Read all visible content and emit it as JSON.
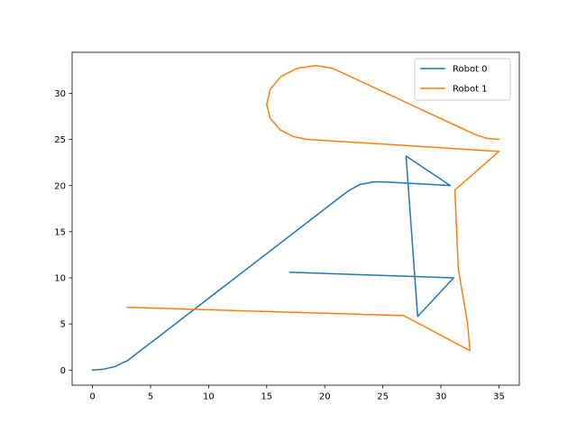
{
  "chart_data": {
    "type": "line",
    "title": "",
    "xlabel": "",
    "ylabel": "",
    "xlim": [
      -1.75,
      36.75
    ],
    "ylim": [
      -1.64,
      34.44
    ],
    "x_ticks": [
      0,
      5,
      10,
      15,
      20,
      25,
      30,
      35
    ],
    "y_ticks": [
      0,
      5,
      10,
      15,
      20,
      25,
      30
    ],
    "grid": false,
    "legend_position": "top-right",
    "series": [
      {
        "name": "Robot 0",
        "color": "#1f77b4",
        "points": [
          [
            0,
            0
          ],
          [
            1,
            0.1
          ],
          [
            2,
            0.4
          ],
          [
            2.6,
            0.8
          ],
          [
            3,
            1
          ],
          [
            22,
            19.4
          ],
          [
            23,
            20.1
          ],
          [
            24.2,
            20.4
          ],
          [
            25,
            20.4
          ],
          [
            26.5,
            20.3
          ],
          [
            30.8,
            20
          ],
          [
            27,
            23.2
          ],
          [
            28,
            5.8
          ],
          [
            31.1,
            10
          ],
          [
            17,
            10.6
          ]
        ]
      },
      {
        "name": "Robot 1",
        "color": "#ff7f0e",
        "points": [
          [
            3,
            6.8
          ],
          [
            26.8,
            5.9
          ],
          [
            32.5,
            2.1
          ],
          [
            32.3,
            5
          ],
          [
            31.5,
            11
          ],
          [
            31.2,
            19.5
          ],
          [
            35,
            23.7
          ],
          [
            18.5,
            25
          ],
          [
            17.3,
            25.3
          ],
          [
            16.2,
            26
          ],
          [
            15.3,
            27.3
          ],
          [
            15,
            28.8
          ],
          [
            15.3,
            30.4
          ],
          [
            16.2,
            31.8
          ],
          [
            17.6,
            32.7
          ],
          [
            19.2,
            33
          ],
          [
            20.7,
            32.7
          ],
          [
            21.2,
            32.4
          ],
          [
            33,
            25.5
          ],
          [
            34,
            25.1
          ],
          [
            35,
            25
          ]
        ]
      }
    ]
  }
}
